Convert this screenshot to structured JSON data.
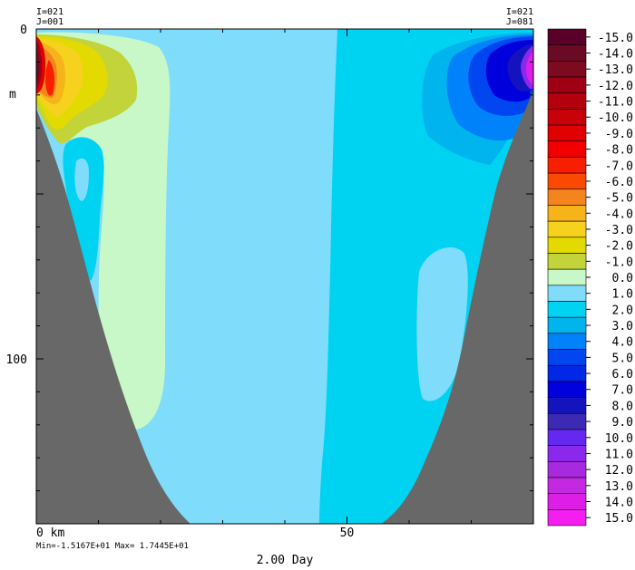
{
  "chart_data": {
    "type": "heatmap",
    "corner_labels": {
      "top_left": [
        "I=021",
        "J=001"
      ],
      "top_right": [
        "I=021",
        "J=081"
      ]
    },
    "y_axis": {
      "unit_label": "m",
      "ticks": [
        {
          "value": 0,
          "label": "0"
        },
        {
          "value": 100,
          "label": "100"
        }
      ],
      "range": [
        0,
        150
      ]
    },
    "x_axis": {
      "ticks": [
        {
          "value": 0,
          "label": "0 km"
        },
        {
          "value": 50,
          "label": "50"
        }
      ],
      "range": [
        0,
        80
      ]
    },
    "stats": "Min=-1.5167E+01  Max= 1.7445E+01",
    "time_label": "2.00 Day",
    "legend": {
      "levels": [
        "-15.0",
        "-14.0",
        "-13.0",
        "-12.0",
        "-11.0",
        "-10.0",
        "-9.0",
        "-8.0",
        "-7.0",
        "-6.0",
        "-5.0",
        "-4.0",
        "-3.0",
        "-2.0",
        "-1.0",
        "0.0",
        "1.0",
        "2.0",
        "3.0",
        "4.0",
        "5.0",
        "6.0",
        "7.0",
        "8.0",
        "9.0",
        "10.0",
        "11.0",
        "12.0",
        "13.0",
        "14.0",
        "15.0"
      ],
      "colors": [
        "#5a0028",
        "#6a0a24",
        "#7e0a20",
        "#a00014",
        "#b4000c",
        "#c80008",
        "#e00000",
        "#f20000",
        "#f81e00",
        "#fa4a00",
        "#f4841e",
        "#f6b41a",
        "#f6d21e",
        "#e2da00",
        "#c2d43a",
        "#c8f8c8",
        "#7fdcfa",
        "#00d2f2",
        "#00b4ee",
        "#0082fa",
        "#0046f0",
        "#0028e6",
        "#0000dc",
        "#1414be",
        "#3c2ab4",
        "#6428f0",
        "#8c28ec",
        "#a82ade",
        "#c428e0",
        "#dc1ee6",
        "#f41ef0"
      ]
    },
    "colors": {
      "terrain": "#686868",
      "background_fill": "#7fdcfa"
    }
  }
}
